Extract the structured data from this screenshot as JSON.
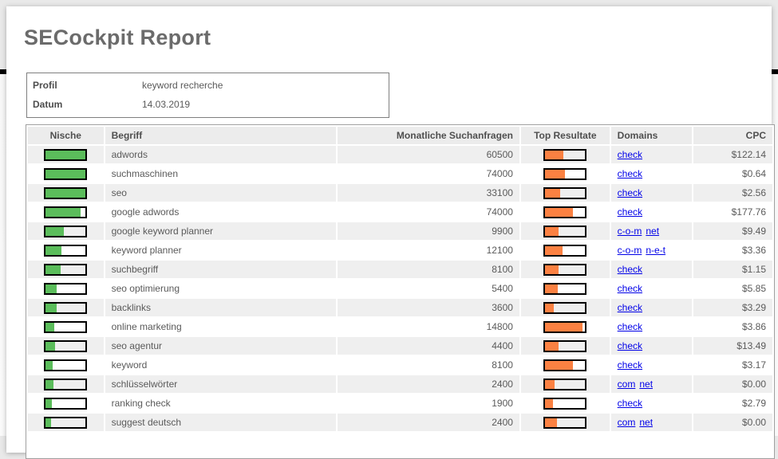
{
  "page": {
    "title": "SECockpit Report"
  },
  "profile_box": {
    "rows": [
      {
        "label": "Profil",
        "value": "keyword recherche"
      },
      {
        "label": "Datum",
        "value": "14.03.2019"
      }
    ]
  },
  "table": {
    "headers": {
      "nische": "Nische",
      "begriff": "Begriff",
      "suchanfragen": "Monatliche Suchanfragen",
      "top_resultate": "Top Resultate",
      "domains": "Domains",
      "cpc": "CPC"
    },
    "rows": [
      {
        "nische_pct": 100,
        "begriff": "adwords",
        "suchanfragen": "60500",
        "top_pct": 45,
        "domains": [
          "check"
        ],
        "cpc": "$122.14"
      },
      {
        "nische_pct": 100,
        "begriff": "suchmaschinen",
        "suchanfragen": "74000",
        "top_pct": 50,
        "domains": [
          "check"
        ],
        "cpc": "$0.64"
      },
      {
        "nische_pct": 100,
        "begriff": "seo",
        "suchanfragen": "33100",
        "top_pct": 37,
        "domains": [
          "check"
        ],
        "cpc": "$2.56"
      },
      {
        "nische_pct": 87,
        "begriff": "google adwords",
        "suchanfragen": "74000",
        "top_pct": 69,
        "domains": [
          "check"
        ],
        "cpc": "$177.76"
      },
      {
        "nische_pct": 45,
        "begriff": "google keyword planner",
        "suchanfragen": "9900",
        "top_pct": 33,
        "domains": [
          "c-o-m",
          "net"
        ],
        "cpc": "$9.49"
      },
      {
        "nische_pct": 40,
        "begriff": "keyword planner",
        "suchanfragen": "12100",
        "top_pct": 44,
        "domains": [
          "c-o-m",
          "n-e-t"
        ],
        "cpc": "$3.36"
      },
      {
        "nische_pct": 37,
        "begriff": "suchbegriff",
        "suchanfragen": "8100",
        "top_pct": 33,
        "domains": [
          "check"
        ],
        "cpc": "$1.15"
      },
      {
        "nische_pct": 28,
        "begriff": "seo optimierung",
        "suchanfragen": "5400",
        "top_pct": 32,
        "domains": [
          "check"
        ],
        "cpc": "$5.85"
      },
      {
        "nische_pct": 28,
        "begriff": "backlinks",
        "suchanfragen": "3600",
        "top_pct": 22,
        "domains": [
          "check"
        ],
        "cpc": "$3.29"
      },
      {
        "nische_pct": 22,
        "begriff": "online marketing",
        "suchanfragen": "14800",
        "top_pct": 94,
        "domains": [
          "check"
        ],
        "cpc": "$3.86"
      },
      {
        "nische_pct": 23,
        "begriff": "seo agentur",
        "suchanfragen": "4400",
        "top_pct": 33,
        "domains": [
          "check"
        ],
        "cpc": "$13.49"
      },
      {
        "nische_pct": 18,
        "begriff": "keyword",
        "suchanfragen": "8100",
        "top_pct": 69,
        "domains": [
          "check"
        ],
        "cpc": "$3.17"
      },
      {
        "nische_pct": 19,
        "begriff": "schlüsselwörter",
        "suchanfragen": "2400",
        "top_pct": 23,
        "domains": [
          "com",
          "net"
        ],
        "cpc": "$0.00"
      },
      {
        "nische_pct": 16,
        "begriff": "ranking check",
        "suchanfragen": "1900",
        "top_pct": 20,
        "domains": [
          "check"
        ],
        "cpc": "$2.79"
      },
      {
        "nische_pct": 14,
        "begriff": "suggest deutsch",
        "suchanfragen": "2400",
        "top_pct": 29,
        "domains": [
          "com",
          "net"
        ],
        "cpc": "$0.00"
      }
    ]
  },
  "colors": {
    "nische_bar": "#5bbd5b",
    "top_bar": "#fb8142",
    "link": "#0000e8",
    "band": "#000000"
  }
}
